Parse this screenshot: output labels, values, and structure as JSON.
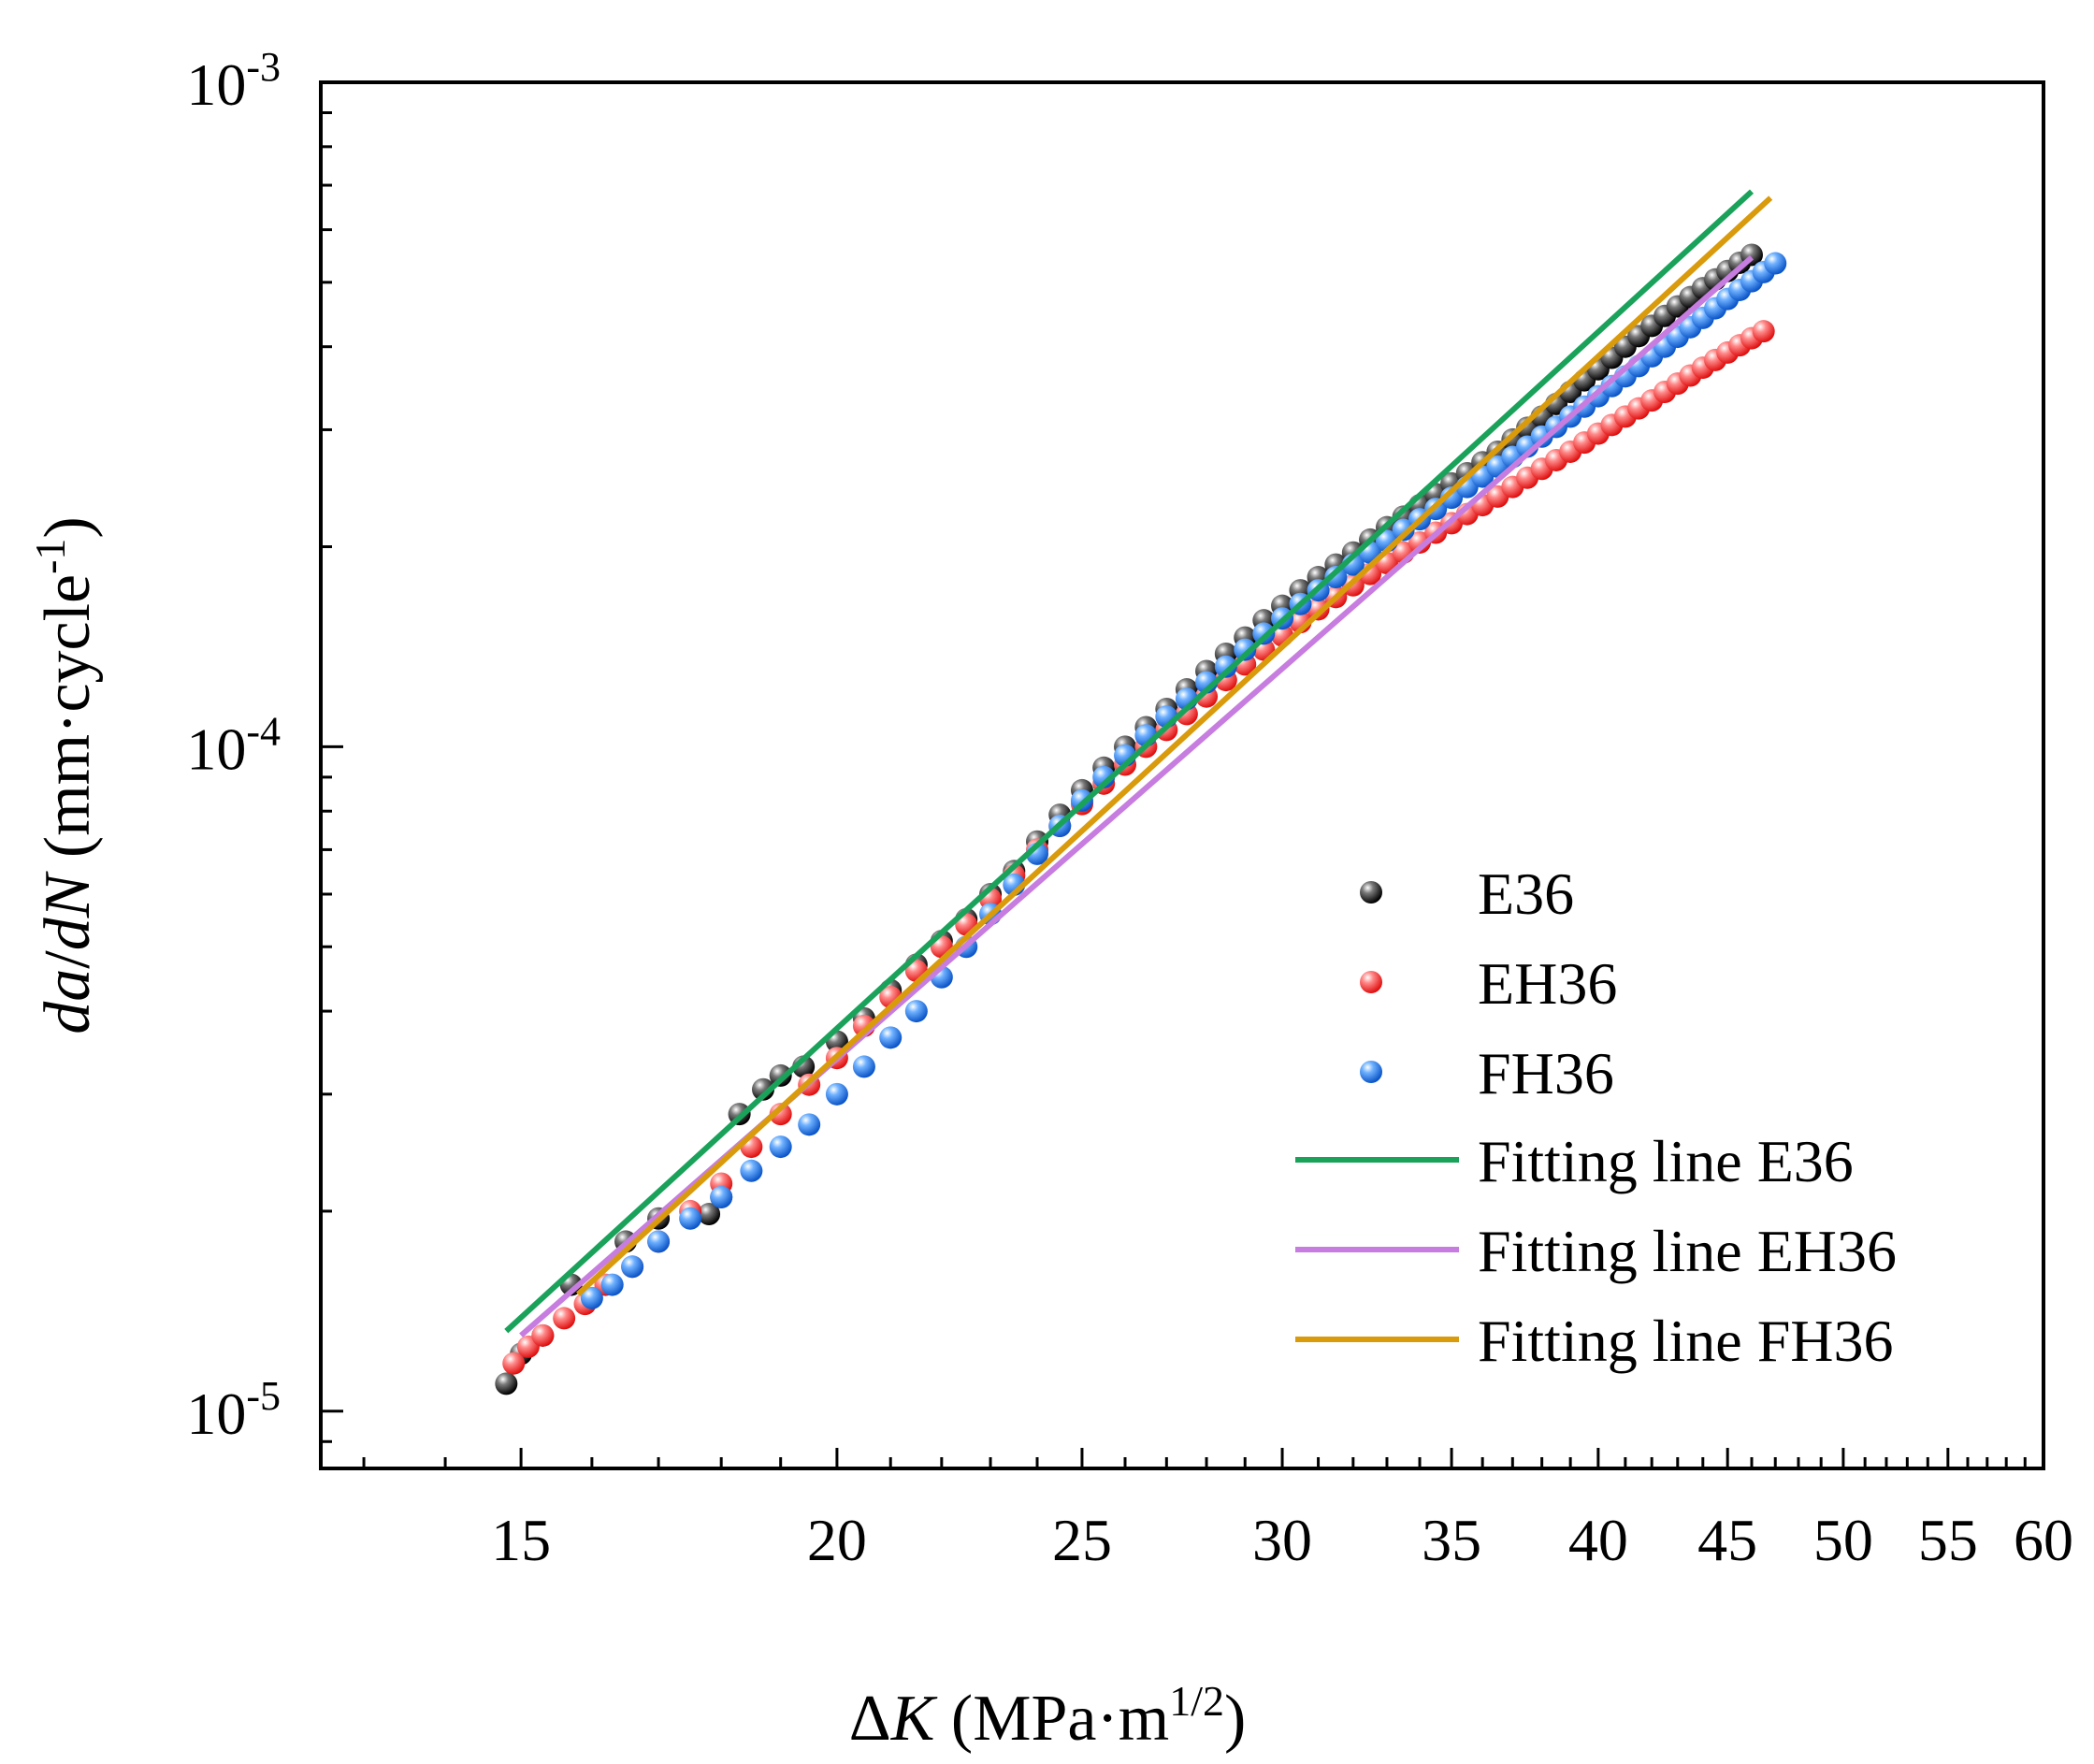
{
  "chart_data": {
    "type": "scatter",
    "xscale": "log",
    "yscale": "log",
    "xlabel": {
      "prefix": "Δ",
      "var": "K",
      "unit": " (MPa·m",
      "sup": "1/2",
      "close": ")"
    },
    "ylabel": {
      "v1": "da",
      "slash": "/",
      "v2": "dN",
      "unit": " (mm·cycle",
      "sup": "-1",
      "close": ")"
    },
    "xlim": [
      12.5,
      60
    ],
    "ylim": [
      8.2e-06,
      0.001
    ],
    "xticks": [
      {
        "value": 15,
        "label": "15"
      },
      {
        "value": 20,
        "label": "20"
      },
      {
        "value": 25,
        "label": "25"
      },
      {
        "value": 30,
        "label": "30"
      },
      {
        "value": 35,
        "label": "35"
      },
      {
        "value": 40,
        "label": "40"
      },
      {
        "value": 45,
        "label": "45"
      },
      {
        "value": 50,
        "label": "50"
      },
      {
        "value": 55,
        "label": "55"
      },
      {
        "value": 60,
        "label": "60"
      }
    ],
    "yticks": [
      {
        "value": 1e-05,
        "base": "10",
        "exp": "-5"
      },
      {
        "value": 0.0001,
        "base": "10",
        "exp": "-4"
      },
      {
        "value": 0.001,
        "base": "10",
        "exp": "-3"
      }
    ],
    "series": [
      {
        "name": "E36",
        "kind": "points",
        "color": "#1a1a1a",
        "points": [
          [
            14.8,
            1.1e-05
          ],
          [
            15.0,
            1.22e-05
          ],
          [
            15.3,
            1.3e-05
          ],
          [
            15.7,
            1.55e-05
          ],
          [
            16.5,
            1.8e-05
          ],
          [
            17.0,
            1.95e-05
          ],
          [
            17.8,
            1.98e-05
          ],
          [
            18.0,
            2.1e-05
          ],
          [
            18.3,
            2.8e-05
          ],
          [
            18.7,
            3.05e-05
          ],
          [
            19.0,
            3.2e-05
          ],
          [
            19.4,
            3.3e-05
          ],
          [
            20.0,
            3.6e-05
          ],
          [
            20.5,
            3.9e-05
          ],
          [
            21.0,
            4.3e-05
          ],
          [
            21.5,
            4.7e-05
          ],
          [
            22.0,
            5.1e-05
          ],
          [
            22.5,
            5.5e-05
          ],
          [
            23.0,
            6e-05
          ],
          [
            23.5,
            6.5e-05
          ],
          [
            24.0,
            7.2e-05
          ],
          [
            24.5,
            7.9e-05
          ],
          [
            25.0,
            8.6e-05
          ],
          [
            25.5,
            9.3e-05
          ],
          [
            26.0,
            0.0001
          ],
          [
            26.5,
            0.000107
          ],
          [
            27.0,
            0.000114
          ],
          [
            27.5,
            0.000122
          ],
          [
            28.0,
            0.00013
          ],
          [
            28.5,
            0.000138
          ],
          [
            29.0,
            0.000146
          ],
          [
            29.5,
            0.000155
          ],
          [
            30.0,
            0.000163
          ],
          [
            30.5,
            0.000172
          ],
          [
            31.0,
            0.00018
          ],
          [
            31.5,
            0.000188
          ],
          [
            32.0,
            0.000196
          ],
          [
            32.5,
            0.000205
          ],
          [
            33.0,
            0.000214
          ],
          [
            33.5,
            0.000222
          ],
          [
            34.0,
            0.000231
          ],
          [
            34.5,
            0.00024
          ],
          [
            35.0,
            0.000249
          ],
          [
            35.5,
            0.000258
          ],
          [
            36.0,
            0.000268
          ],
          [
            36.5,
            0.000278
          ],
          [
            37.0,
            0.00029
          ],
          [
            37.5,
            0.000302
          ],
          [
            38.0,
            0.000314
          ],
          [
            38.5,
            0.000328
          ],
          [
            39.0,
            0.000342
          ],
          [
            39.5,
            0.000356
          ],
          [
            40.0,
            0.00037
          ],
          [
            40.5,
            0.000385
          ],
          [
            41.0,
            0.0004
          ],
          [
            41.5,
            0.000415
          ],
          [
            42.0,
            0.00043
          ],
          [
            42.5,
            0.000445
          ],
          [
            43.0,
            0.00046
          ],
          [
            43.5,
            0.000475
          ],
          [
            44.0,
            0.00049
          ],
          [
            44.5,
            0.000505
          ],
          [
            45.0,
            0.00052
          ],
          [
            45.5,
            0.000535
          ],
          [
            46.0,
            0.00055
          ]
        ]
      },
      {
        "name": "EH36",
        "kind": "points",
        "color": "#ff3b3b",
        "points": [
          [
            14.9,
            1.18e-05
          ],
          [
            15.1,
            1.25e-05
          ],
          [
            15.3,
            1.3e-05
          ],
          [
            15.6,
            1.38e-05
          ],
          [
            15.9,
            1.45e-05
          ],
          [
            16.2,
            1.55e-05
          ],
          [
            16.6,
            1.65e-05
          ],
          [
            17.0,
            1.8e-05
          ],
          [
            17.5,
            2e-05
          ],
          [
            18.0,
            2.2e-05
          ],
          [
            18.5,
            2.5e-05
          ],
          [
            19.0,
            2.8e-05
          ],
          [
            19.5,
            3.1e-05
          ],
          [
            20.0,
            3.4e-05
          ],
          [
            20.5,
            3.8e-05
          ],
          [
            21.0,
            4.2e-05
          ],
          [
            21.5,
            4.6e-05
          ],
          [
            22.0,
            5e-05
          ],
          [
            22.5,
            5.4e-05
          ],
          [
            23.0,
            5.9e-05
          ],
          [
            23.5,
            6.4e-05
          ],
          [
            24.0,
            7e-05
          ],
          [
            24.5,
            7.6e-05
          ],
          [
            25.0,
            8.2e-05
          ],
          [
            25.5,
            8.8e-05
          ],
          [
            26.0,
            9.4e-05
          ],
          [
            26.5,
            0.0001
          ],
          [
            27.0,
            0.000106
          ],
          [
            27.5,
            0.000112
          ],
          [
            28.0,
            0.000119
          ],
          [
            28.5,
            0.000126
          ],
          [
            29.0,
            0.000133
          ],
          [
            29.5,
            0.00014
          ],
          [
            30.0,
            0.000147
          ],
          [
            30.5,
            0.000154
          ],
          [
            31.0,
            0.000161
          ],
          [
            31.5,
            0.000168
          ],
          [
            32.0,
            0.000175
          ],
          [
            32.5,
            0.000182
          ],
          [
            33.0,
            0.000189
          ],
          [
            33.5,
            0.000196
          ],
          [
            34.0,
            0.000203
          ],
          [
            34.5,
            0.00021
          ],
          [
            35.0,
            0.000217
          ],
          [
            35.5,
            0.000224
          ],
          [
            36.0,
            0.000231
          ],
          [
            36.5,
            0.000238
          ],
          [
            37.0,
            0.000246
          ],
          [
            37.5,
            0.000254
          ],
          [
            38.0,
            0.000262
          ],
          [
            38.5,
            0.00027
          ],
          [
            39.0,
            0.000278
          ],
          [
            39.5,
            0.000287
          ],
          [
            40.0,
            0.000296
          ],
          [
            40.5,
            0.000305
          ],
          [
            41.0,
            0.000314
          ],
          [
            41.5,
            0.000323
          ],
          [
            42.0,
            0.000332
          ],
          [
            42.5,
            0.000342
          ],
          [
            43.0,
            0.000352
          ],
          [
            43.5,
            0.000362
          ],
          [
            44.0,
            0.000372
          ],
          [
            44.5,
            0.000382
          ],
          [
            45.0,
            0.000392
          ],
          [
            45.5,
            0.000402
          ],
          [
            46.0,
            0.000412
          ],
          [
            46.5,
            0.000422
          ]
        ]
      },
      {
        "name": "FH36",
        "kind": "points",
        "color": "#1e6fe0",
        "points": [
          [
            16.0,
            1.48e-05
          ],
          [
            16.3,
            1.55e-05
          ],
          [
            16.6,
            1.65e-05
          ],
          [
            17.0,
            1.8e-05
          ],
          [
            17.5,
            1.95e-05
          ],
          [
            18.0,
            2.1e-05
          ],
          [
            18.5,
            2.3e-05
          ],
          [
            19.0,
            2.5e-05
          ],
          [
            19.5,
            2.7e-05
          ],
          [
            20.0,
            3e-05
          ],
          [
            20.5,
            3.3e-05
          ],
          [
            21.0,
            3.65e-05
          ],
          [
            21.5,
            4e-05
          ],
          [
            22.0,
            4.5e-05
          ],
          [
            22.5,
            5e-05
          ],
          [
            23.0,
            5.6e-05
          ],
          [
            23.5,
            6.2e-05
          ],
          [
            24.0,
            6.9e-05
          ],
          [
            24.5,
            7.6e-05
          ],
          [
            25.0,
            8.3e-05
          ],
          [
            25.5,
            9e-05
          ],
          [
            26.0,
            9.7e-05
          ],
          [
            26.5,
            0.000104
          ],
          [
            27.0,
            0.000111
          ],
          [
            27.5,
            0.000118
          ],
          [
            28.0,
            0.000125
          ],
          [
            28.5,
            0.000132
          ],
          [
            29.0,
            0.00014
          ],
          [
            29.5,
            0.000148
          ],
          [
            30.0,
            0.000156
          ],
          [
            30.5,
            0.000164
          ],
          [
            31.0,
            0.000172
          ],
          [
            31.5,
            0.00018
          ],
          [
            32.0,
            0.000188
          ],
          [
            32.5,
            0.000196
          ],
          [
            33.0,
            0.000204
          ],
          [
            33.5,
            0.000212
          ],
          [
            34.0,
            0.00022
          ],
          [
            34.5,
            0.000228
          ],
          [
            35.0,
            0.000237
          ],
          [
            35.5,
            0.000246
          ],
          [
            36.0,
            0.000255
          ],
          [
            36.5,
            0.000264
          ],
          [
            37.0,
            0.000273
          ],
          [
            37.5,
            0.000283
          ],
          [
            38.0,
            0.000293
          ],
          [
            38.5,
            0.000303
          ],
          [
            39.0,
            0.000314
          ],
          [
            39.5,
            0.000325
          ],
          [
            40.0,
            0.000337
          ],
          [
            40.5,
            0.000349
          ],
          [
            41.0,
            0.000361
          ],
          [
            41.5,
            0.000374
          ],
          [
            42.0,
            0.000387
          ],
          [
            42.5,
            0.0004
          ],
          [
            43.0,
            0.000414
          ],
          [
            43.5,
            0.000428
          ],
          [
            44.0,
            0.000442
          ],
          [
            44.5,
            0.000457
          ],
          [
            45.0,
            0.000472
          ],
          [
            45.5,
            0.000487
          ],
          [
            46.0,
            0.000502
          ],
          [
            46.5,
            0.000518
          ],
          [
            47.0,
            0.000534
          ]
        ]
      },
      {
        "name": "Fitting line E36",
        "kind": "line",
        "color": "#1aa25a",
        "points": [
          [
            14.8,
            1.32e-05
          ],
          [
            46.0,
            0.000685
          ]
        ]
      },
      {
        "name": "Fitting line EH36",
        "kind": "line",
        "color": "#c77ddf",
        "points": [
          [
            15.0,
            1.3e-05
          ],
          [
            46.0,
            0.000545
          ]
        ]
      },
      {
        "name": "Fitting line FH36",
        "kind": "line",
        "color": "#d99a0b",
        "points": [
          [
            15.8,
            1.5e-05
          ],
          [
            46.8,
            0.00067
          ]
        ]
      }
    ]
  }
}
